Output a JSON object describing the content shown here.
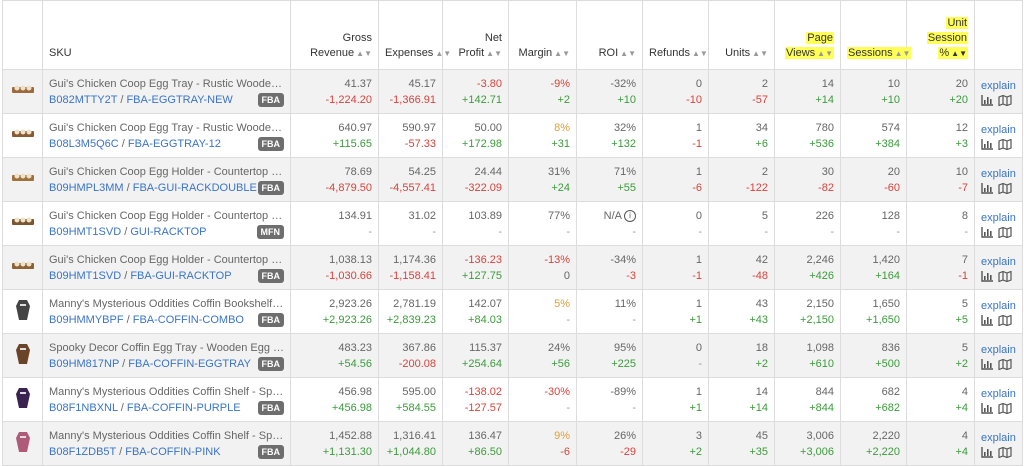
{
  "header": {
    "sku": "SKU",
    "gross_revenue": [
      "Gross",
      "Revenue"
    ],
    "expenses": "Expenses",
    "net_profit": [
      "Net",
      "Profit"
    ],
    "margin": "Margin",
    "roi": "ROI",
    "refunds": "Refunds",
    "units": "Units",
    "page_views": [
      "Page",
      "Views"
    ],
    "sessions": "Sessions",
    "unit_session": [
      "Unit",
      "Session",
      "%"
    ]
  },
  "actions": {
    "explain": "explain",
    "chart_icon": "bar-chart-icon",
    "map_icon": "map-icon"
  },
  "colors": {
    "link": "#3a74c9",
    "positive": "#3b9c3b",
    "negative": "#d9433c",
    "warning": "#e0a03a",
    "highlight": "#ffff55"
  },
  "rows": [
    {
      "title": "Gui's Chicken Coop Egg Tray - Rustic Wooden…",
      "asin": "B082MTTY2T",
      "sku": "FBA-EGGTRAY-NEW",
      "badge": "FBA",
      "gross": [
        "41.37",
        "-1,224.20"
      ],
      "expenses": [
        "45.17",
        "-1,366.91"
      ],
      "net": [
        "-3.80",
        "+142.71"
      ],
      "margin": [
        "-9%",
        "+2"
      ],
      "roi": [
        "-32%",
        "+10"
      ],
      "refunds": [
        "0",
        "-10"
      ],
      "units": [
        "2",
        "-57"
      ],
      "views": [
        "14",
        "+14"
      ],
      "sessions": [
        "10",
        "+10"
      ],
      "us": [
        "20",
        "+20"
      ]
    },
    {
      "title": "Gui's Chicken Coop Egg Tray - Rustic Wooden…",
      "asin": "B08L3M5Q6C",
      "sku": "FBA-EGGTRAY-12",
      "badge": "FBA",
      "gross": [
        "640.97",
        "+115.65"
      ],
      "expenses": [
        "590.97",
        "-57.33"
      ],
      "net": [
        "50.00",
        "+172.98"
      ],
      "margin": [
        "8%",
        "+31"
      ],
      "roi": [
        "32%",
        "+132"
      ],
      "refunds": [
        "1",
        "-1"
      ],
      "units": [
        "34",
        "+6"
      ],
      "views": [
        "780",
        "+536"
      ],
      "sessions": [
        "574",
        "+384"
      ],
      "us": [
        "12",
        "+3"
      ]
    },
    {
      "title": "Gui's Chicken Coop Egg Holder - Countertop …",
      "asin": "B09HMPL3MM",
      "sku": "FBA-GUI-RACKDOUBLE",
      "badge": "FBA",
      "gross": [
        "78.69",
        "-4,879.50"
      ],
      "expenses": [
        "54.25",
        "-4,557.41"
      ],
      "net": [
        "24.44",
        "-322.09"
      ],
      "margin": [
        "31%",
        "+24"
      ],
      "roi": [
        "71%",
        "+55"
      ],
      "refunds": [
        "1",
        "-6"
      ],
      "units": [
        "2",
        "-122"
      ],
      "views": [
        "30",
        "-82"
      ],
      "sessions": [
        "20",
        "-60"
      ],
      "us": [
        "10",
        "-7"
      ]
    },
    {
      "title": "Gui's Chicken Coop Egg Holder - Countertop …",
      "asin": "B09HMT1SVD",
      "sku": "GUI-RACKTOP",
      "badge": "MFN",
      "gross": [
        "134.91",
        "-"
      ],
      "expenses": [
        "31.02",
        "-"
      ],
      "net": [
        "103.89",
        "-"
      ],
      "margin": [
        "77%",
        "-"
      ],
      "roi": [
        "N/A",
        "-"
      ],
      "refunds": [
        "0",
        "-"
      ],
      "units": [
        "5",
        "-"
      ],
      "views": [
        "226",
        "-"
      ],
      "sessions": [
        "128",
        "-"
      ],
      "us": [
        "8",
        "-"
      ]
    },
    {
      "title": "Gui's Chicken Coop Egg Holder - Countertop …",
      "asin": "B09HMT1SVD",
      "sku": "FBA-GUI-RACKTOP",
      "badge": "FBA",
      "gross": [
        "1,038.13",
        "-1,030.66"
      ],
      "expenses": [
        "1,174.36",
        "-1,158.41"
      ],
      "net": [
        "-136.23",
        "+127.75"
      ],
      "margin": [
        "-13%",
        "0"
      ],
      "roi": [
        "-34%",
        "-3"
      ],
      "refunds": [
        "1",
        "-1"
      ],
      "units": [
        "42",
        "-48"
      ],
      "views": [
        "2,246",
        "+426"
      ],
      "sessions": [
        "1,420",
        "+164"
      ],
      "us": [
        "7",
        "-1"
      ]
    },
    {
      "title": "Manny's Mysterious Oddities Coffin Bookshelf …",
      "asin": "B09HMMYBPF",
      "sku": "FBA-COFFIN-COMBO",
      "badge": "FBA",
      "gross": [
        "2,923.26",
        "+2,923.26"
      ],
      "expenses": [
        "2,781.19",
        "+2,839.23"
      ],
      "net": [
        "142.07",
        "+84.03"
      ],
      "margin": [
        "5%",
        "-"
      ],
      "roi": [
        "11%",
        "-"
      ],
      "refunds": [
        "1",
        "+1"
      ],
      "units": [
        "43",
        "+43"
      ],
      "views": [
        "2,150",
        "+2,150"
      ],
      "sessions": [
        "1,650",
        "+1,650"
      ],
      "us": [
        "5",
        "+5"
      ]
    },
    {
      "title": "Spooky Decor Coffin Egg Tray - Wooden Egg …",
      "asin": "B09HM817NP",
      "sku": "FBA-COFFIN-EGGTRAY",
      "badge": "FBA",
      "gross": [
        "483.23",
        "+54.56"
      ],
      "expenses": [
        "367.86",
        "-200.08"
      ],
      "net": [
        "115.37",
        "+254.64"
      ],
      "margin": [
        "24%",
        "+56"
      ],
      "roi": [
        "95%",
        "+225"
      ],
      "refunds": [
        "0",
        "-"
      ],
      "units": [
        "18",
        "+2"
      ],
      "views": [
        "1,098",
        "+610"
      ],
      "sessions": [
        "836",
        "+500"
      ],
      "us": [
        "5",
        "+2"
      ]
    },
    {
      "title": "Manny's Mysterious Oddities Coffin Shelf - Sp…",
      "asin": "B08F1NBXNL",
      "sku": "FBA-COFFIN-PURPLE",
      "badge": "FBA",
      "gross": [
        "456.98",
        "+456.98"
      ],
      "expenses": [
        "595.00",
        "+584.55"
      ],
      "net": [
        "-138.02",
        "-127.57"
      ],
      "margin": [
        "-30%",
        "-"
      ],
      "roi": [
        "-89%",
        "-"
      ],
      "refunds": [
        "1",
        "+1"
      ],
      "units": [
        "14",
        "+14"
      ],
      "views": [
        "844",
        "+844"
      ],
      "sessions": [
        "682",
        "+682"
      ],
      "us": [
        "4",
        "+4"
      ]
    },
    {
      "title": "Manny's Mysterious Oddities Coffin Shelf - Sp…",
      "asin": "B08F1ZDB5T",
      "sku": "FBA-COFFIN-PINK",
      "badge": "FBA",
      "gross": [
        "1,452.88",
        "+1,131.30"
      ],
      "expenses": [
        "1,316.41",
        "+1,044.80"
      ],
      "net": [
        "136.47",
        "+86.50"
      ],
      "margin": [
        "9%",
        "-6"
      ],
      "roi": [
        "26%",
        "-29"
      ],
      "refunds": [
        "3",
        "+2"
      ],
      "units": [
        "45",
        "+35"
      ],
      "views": [
        "3,006",
        "+3,006"
      ],
      "sessions": [
        "2,220",
        "+2,220"
      ],
      "us": [
        "4",
        "+4"
      ]
    }
  ]
}
